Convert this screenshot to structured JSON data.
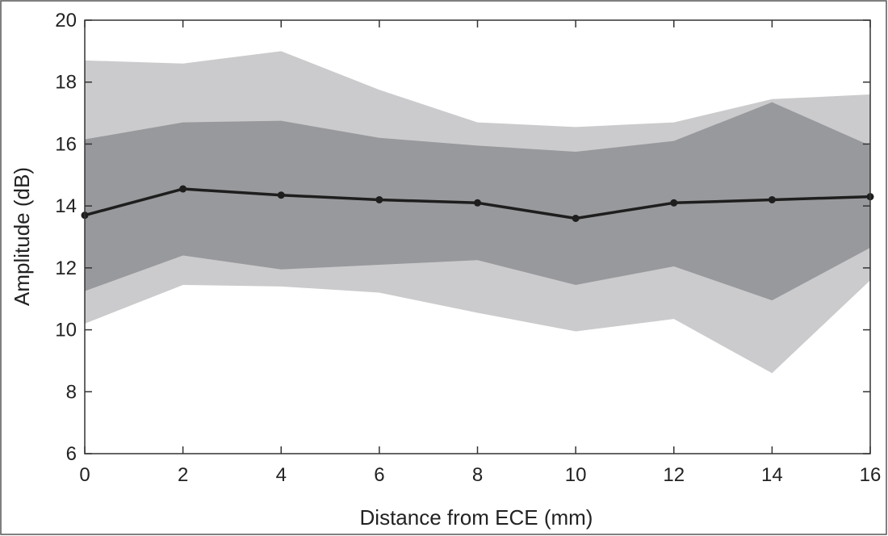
{
  "chart_data": {
    "type": "line",
    "title": "",
    "xlabel": "Distance from ECE (mm)",
    "ylabel": "Amplitude (dB)",
    "xlim": [
      0,
      16
    ],
    "ylim": [
      6,
      20
    ],
    "x_ticks": [
      0,
      2,
      4,
      6,
      8,
      10,
      12,
      14,
      16
    ],
    "y_ticks": [
      6,
      8,
      10,
      12,
      14,
      16,
      18,
      20
    ],
    "grid": false,
    "legend": "none",
    "x": [
      0,
      2,
      4,
      6,
      8,
      10,
      12,
      14,
      16
    ],
    "series": [
      {
        "values": [
          13.7,
          14.55,
          14.35,
          14.2,
          14.1,
          13.6,
          14.1,
          14.2,
          14.3
        ]
      }
    ],
    "bands": [
      {
        "lower": [
          10.2,
          11.45,
          11.4,
          11.2,
          10.55,
          9.95,
          10.35,
          8.6,
          11.6
        ],
        "upper": [
          18.7,
          18.6,
          19.0,
          17.75,
          16.7,
          16.55,
          16.7,
          17.45,
          17.6
        ]
      },
      {
        "lower": [
          11.25,
          12.4,
          11.95,
          12.1,
          12.25,
          11.45,
          12.05,
          10.95,
          12.65
        ],
        "upper": [
          16.15,
          16.7,
          16.75,
          16.2,
          15.95,
          15.75,
          16.1,
          17.35,
          15.95
        ]
      }
    ],
    "colors": {
      "outer_band": "#cbcbcd",
      "inner_band": "#98999c",
      "line": "#1e1e1e",
      "axis": "#333333"
    }
  }
}
